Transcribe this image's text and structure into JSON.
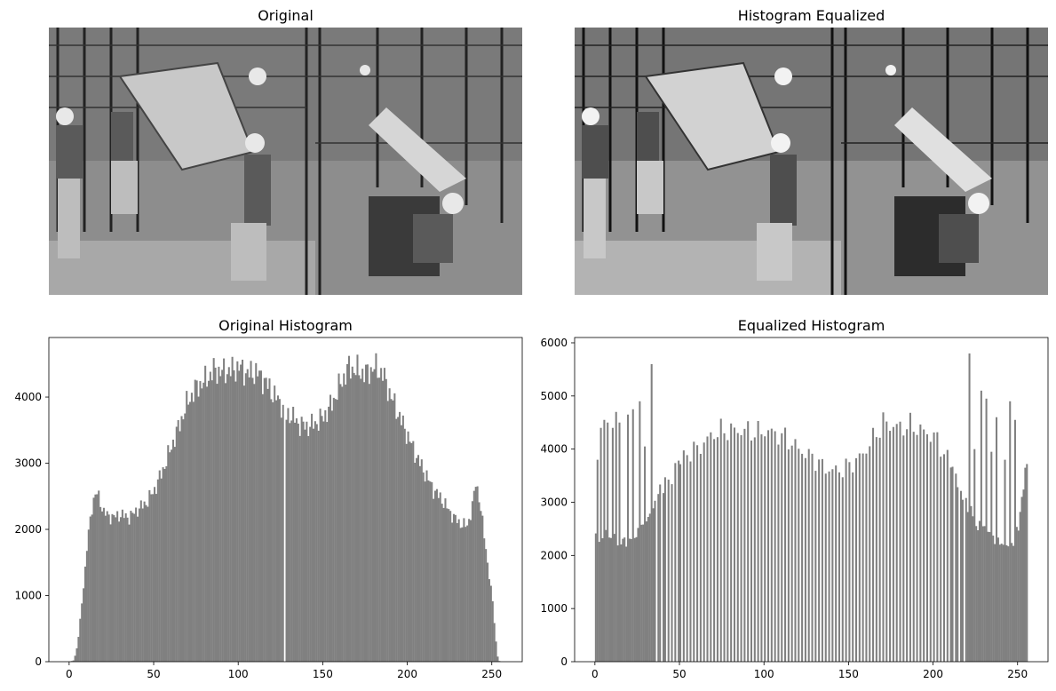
{
  "panels": {
    "original_image": {
      "title": "Original"
    },
    "equalized_image": {
      "title": "Histogram Equalized"
    }
  },
  "colors": {
    "bar": "#808080",
    "axis": "#000000",
    "background": "#ffffff"
  },
  "chart_data": [
    {
      "type": "bar",
      "title": "Original Histogram",
      "xlabel": "",
      "ylabel": "",
      "xlim": [
        -12,
        268
      ],
      "ylim": [
        0,
        4900
      ],
      "xticks": [
        0,
        50,
        100,
        150,
        200,
        250
      ],
      "yticks": [
        0,
        1000,
        2000,
        3000,
        4000
      ],
      "grid": false,
      "bins": 256,
      "keypoints": [
        [
          0,
          0
        ],
        [
          2,
          20
        ],
        [
          3,
          90
        ],
        [
          4,
          200
        ],
        [
          5,
          380
        ],
        [
          6,
          620
        ],
        [
          7,
          900
        ],
        [
          8,
          1150
        ],
        [
          9,
          1400
        ],
        [
          10,
          1700
        ],
        [
          11,
          1950
        ],
        [
          12,
          2150
        ],
        [
          13,
          2350
        ],
        [
          14,
          2450
        ],
        [
          15,
          2500
        ],
        [
          16,
          2550
        ],
        [
          18,
          2420
        ],
        [
          20,
          2250
        ],
        [
          25,
          2180
        ],
        [
          30,
          2220
        ],
        [
          35,
          2180
        ],
        [
          40,
          2300
        ],
        [
          45,
          2400
        ],
        [
          50,
          2600
        ],
        [
          55,
          2900
        ],
        [
          60,
          3250
        ],
        [
          65,
          3600
        ],
        [
          70,
          3950
        ],
        [
          75,
          4150
        ],
        [
          80,
          4250
        ],
        [
          85,
          4400
        ],
        [
          90,
          4380
        ],
        [
          95,
          4400
        ],
        [
          100,
          4450
        ],
        [
          105,
          4350
        ],
        [
          110,
          4380
        ],
        [
          115,
          4250
        ],
        [
          120,
          4050
        ],
        [
          125,
          3900
        ],
        [
          126,
          3800
        ],
        [
          128,
          3700
        ],
        [
          130,
          3750
        ],
        [
          135,
          3600
        ],
        [
          140,
          3550
        ],
        [
          145,
          3600
        ],
        [
          150,
          3700
        ],
        [
          155,
          3900
        ],
        [
          160,
          4200
        ],
        [
          165,
          4450
        ],
        [
          170,
          4400
        ],
        [
          175,
          4350
        ],
        [
          180,
          4450
        ],
        [
          185,
          4350
        ],
        [
          190,
          4000
        ],
        [
          195,
          3700
        ],
        [
          200,
          3400
        ],
        [
          205,
          3100
        ],
        [
          210,
          2850
        ],
        [
          215,
          2600
        ],
        [
          220,
          2450
        ],
        [
          225,
          2250
        ],
        [
          230,
          2100
        ],
        [
          235,
          2050
        ],
        [
          238,
          2350
        ],
        [
          240,
          2700
        ],
        [
          242,
          2500
        ],
        [
          244,
          2100
        ],
        [
          246,
          1700
        ],
        [
          248,
          1300
        ],
        [
          250,
          900
        ],
        [
          251,
          600
        ],
        [
          252,
          300
        ],
        [
          253,
          80
        ],
        [
          254,
          10
        ],
        [
          255,
          0
        ]
      ],
      "gaps": [
        127
      ]
    },
    {
      "type": "bar",
      "title": "Equalized Histogram",
      "xlabel": "",
      "ylabel": "",
      "xlim": [
        -12,
        268
      ],
      "ylim": [
        0,
        6100
      ],
      "xticks": [
        0,
        50,
        100,
        150,
        200,
        250
      ],
      "yticks": [
        0,
        1000,
        2000,
        3000,
        4000,
        5000,
        6000
      ],
      "grid": false,
      "bins": 256,
      "keypoints": [
        [
          0,
          2300
        ],
        [
          5,
          2400
        ],
        [
          10,
          2300
        ],
        [
          15,
          2250
        ],
        [
          20,
          2300
        ],
        [
          25,
          2450
        ],
        [
          30,
          2600
        ],
        [
          35,
          3100
        ],
        [
          38,
          3250
        ],
        [
          40,
          3350
        ],
        [
          45,
          3500
        ],
        [
          50,
          3750
        ],
        [
          55,
          3950
        ],
        [
          60,
          4000
        ],
        [
          65,
          4150
        ],
        [
          70,
          4300
        ],
        [
          75,
          4350
        ],
        [
          80,
          4350
        ],
        [
          85,
          4350
        ],
        [
          90,
          4350
        ],
        [
          95,
          4300
        ],
        [
          100,
          4350
        ],
        [
          105,
          4300
        ],
        [
          110,
          4250
        ],
        [
          115,
          4150
        ],
        [
          120,
          4000
        ],
        [
          125,
          3900
        ],
        [
          130,
          3800
        ],
        [
          135,
          3650
        ],
        [
          140,
          3600
        ],
        [
          145,
          3600
        ],
        [
          150,
          3700
        ],
        [
          155,
          3800
        ],
        [
          160,
          4000
        ],
        [
          165,
          4250
        ],
        [
          170,
          4500
        ],
        [
          175,
          4450
        ],
        [
          180,
          4400
        ],
        [
          185,
          4450
        ],
        [
          190,
          4400
        ],
        [
          195,
          4300
        ],
        [
          200,
          4250
        ],
        [
          205,
          4000
        ],
        [
          210,
          3700
        ],
        [
          213,
          3400
        ],
        [
          215,
          3200
        ],
        [
          218,
          3000
        ],
        [
          221,
          2950
        ],
        [
          225,
          2600
        ],
        [
          230,
          2500
        ],
        [
          235,
          2300
        ],
        [
          240,
          2200
        ],
        [
          245,
          2100
        ],
        [
          250,
          2500
        ],
        [
          253,
          3400
        ],
        [
          255,
          3650
        ]
      ],
      "spikes": [
        [
          1,
          3800
        ],
        [
          3,
          4400
        ],
        [
          5,
          4550
        ],
        [
          7,
          4500
        ],
        [
          10,
          4400
        ],
        [
          12,
          4700
        ],
        [
          14,
          4500
        ],
        [
          19,
          4650
        ],
        [
          22,
          4750
        ],
        [
          26,
          4900
        ],
        [
          29,
          4050
        ],
        [
          33,
          5600
        ],
        [
          221,
          5800
        ],
        [
          224,
          4000
        ],
        [
          228,
          5100
        ],
        [
          231,
          4950
        ],
        [
          234,
          3950
        ],
        [
          237,
          4600
        ],
        [
          242,
          3800
        ],
        [
          245,
          4900
        ],
        [
          248,
          4550
        ],
        [
          254,
          3650
        ]
      ],
      "gaps": [
        36,
        39,
        42,
        44,
        46,
        48,
        51,
        53,
        55,
        57,
        59,
        61,
        63,
        65,
        67,
        69,
        71,
        73,
        75,
        77,
        79,
        81,
        83,
        85,
        87,
        89,
        91,
        93,
        95,
        97,
        99,
        101,
        103,
        105,
        107,
        109,
        111,
        113,
        115,
        117,
        119,
        121,
        123,
        125,
        127,
        129,
        131,
        133,
        135,
        137,
        139,
        141,
        143,
        145,
        147,
        149,
        151,
        153,
        155,
        157,
        159,
        161,
        163,
        165,
        167,
        169,
        171,
        173,
        175,
        177,
        179,
        181,
        183,
        185,
        187,
        189,
        191,
        193,
        195,
        197,
        199,
        201,
        203,
        205,
        207,
        209,
        212,
        215,
        218
      ]
    }
  ]
}
